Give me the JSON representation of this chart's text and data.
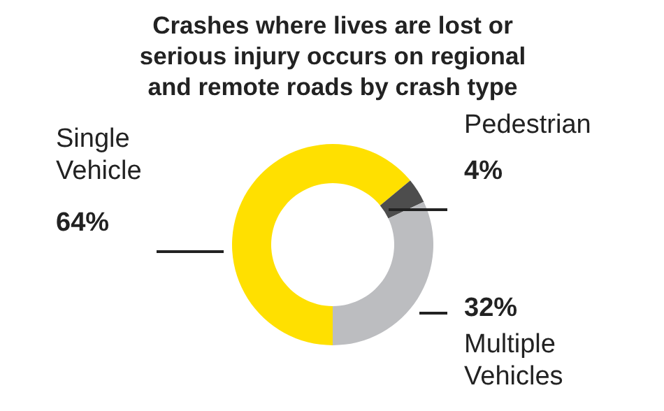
{
  "chart_data": {
    "type": "donut",
    "title": "Crashes where lives are lost or serious injury occurs on regional and remote roads by crash type",
    "categories": [
      "Single Vehicle",
      "Pedestrian",
      "Multiple Vehicles"
    ],
    "values": [
      64,
      4,
      32
    ],
    "colors": [
      "#ffe000",
      "#4d4d4d",
      "#bcbdc0"
    ],
    "value_labels": [
      "64%",
      "4%",
      "32%"
    ]
  }
}
